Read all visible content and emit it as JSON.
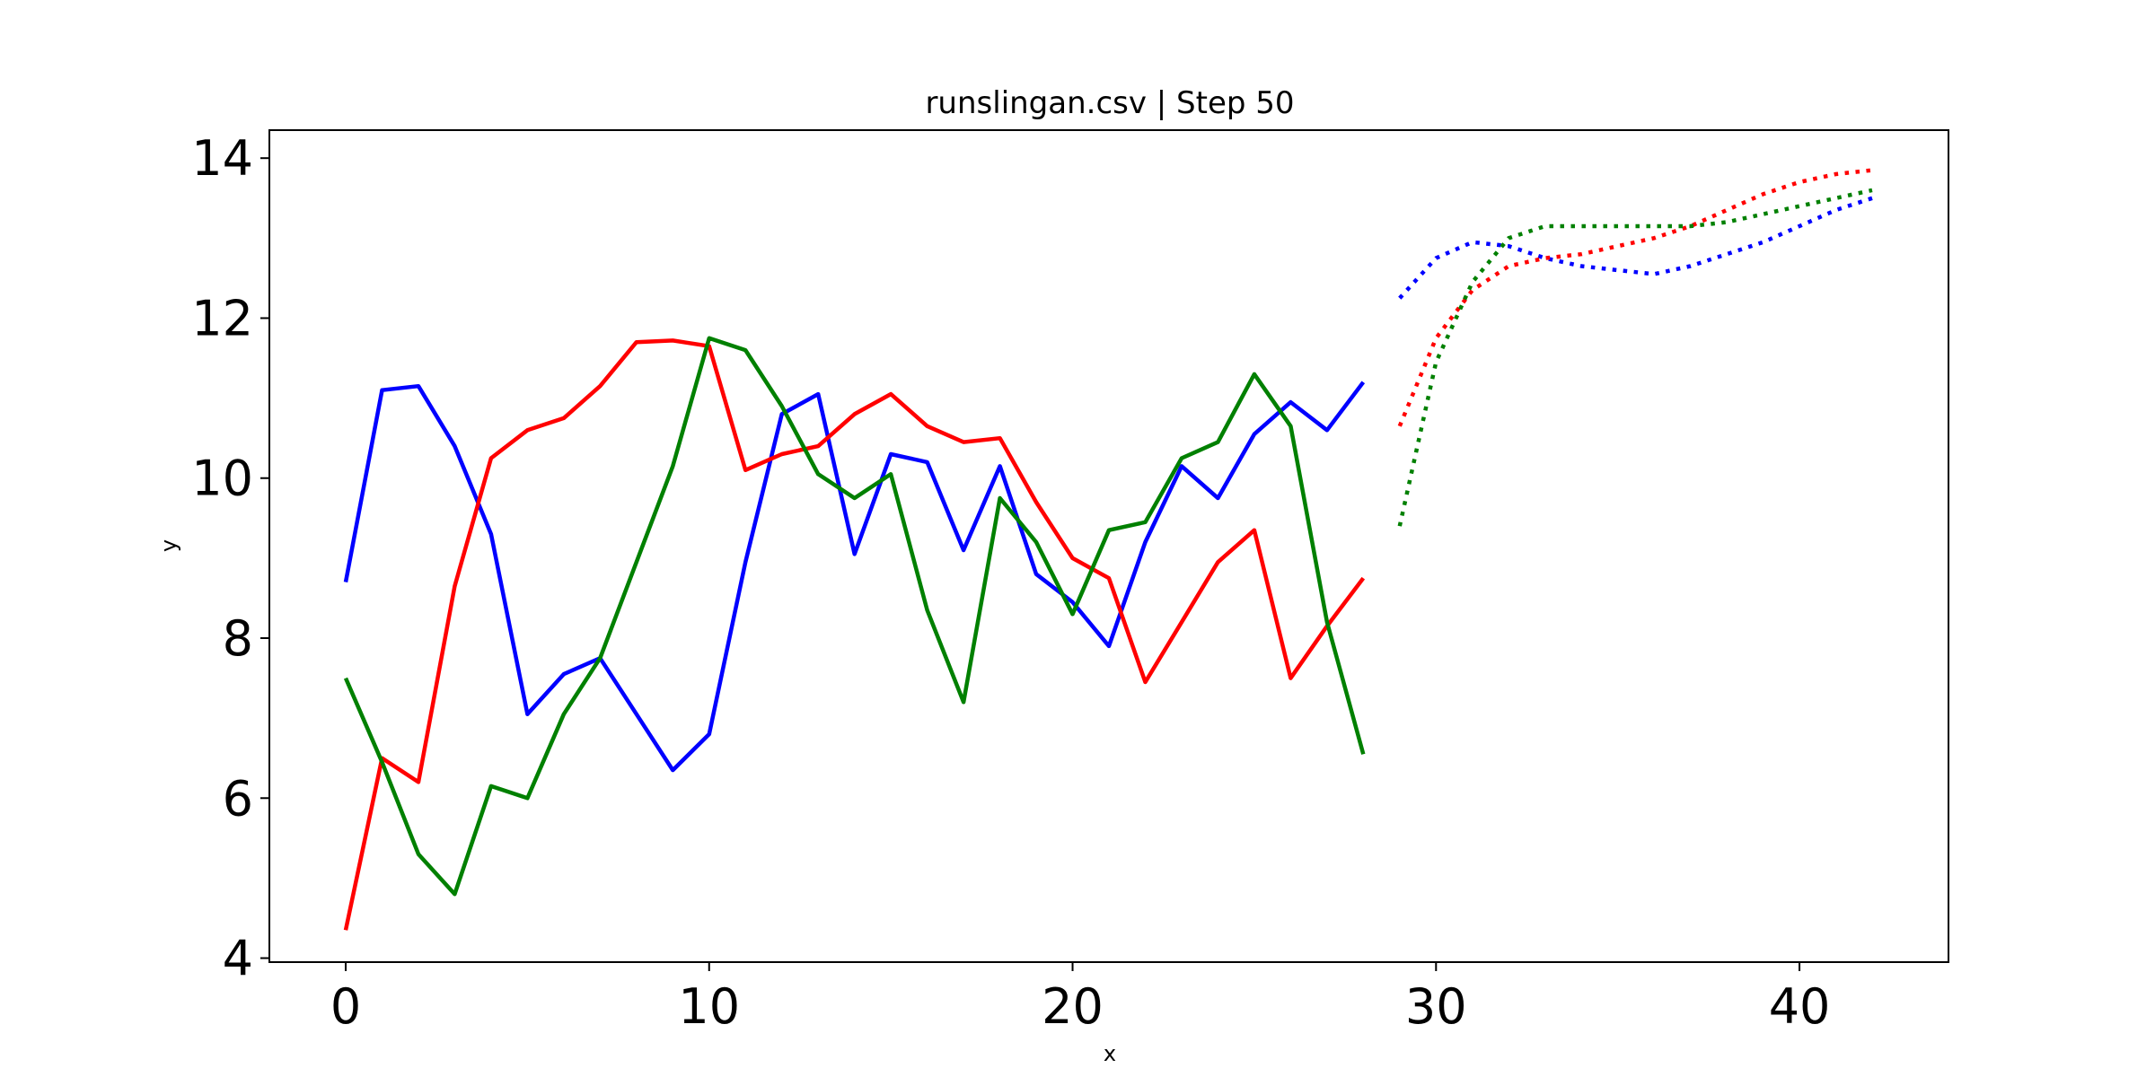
{
  "chart_data": {
    "type": "line",
    "title": "runslingan.csv | Step 50",
    "xlabel": "x",
    "ylabel": "y",
    "xlim": [
      -2.1,
      44.1
    ],
    "ylim": [
      3.95,
      14.35
    ],
    "xticks": [
      0,
      10,
      20,
      30,
      40
    ],
    "yticks": [
      4,
      6,
      8,
      10,
      12,
      14
    ],
    "x_tick_labels": [
      "0",
      "10",
      "20",
      "30",
      "40"
    ],
    "y_tick_labels": [
      "4",
      "6",
      "8",
      "10",
      "12",
      "14"
    ],
    "grid": false,
    "legend": "none",
    "series": [
      {
        "color": "#0000ff",
        "style": "solid",
        "x": [
          0,
          1,
          2,
          3,
          4,
          5,
          6,
          7,
          8,
          9,
          10,
          11,
          12,
          13,
          14,
          15,
          16,
          17,
          18,
          19,
          20,
          21,
          22,
          23,
          24,
          25,
          26,
          27,
          28
        ],
        "values": [
          8.7,
          11.1,
          11.15,
          10.4,
          9.3,
          7.05,
          7.55,
          7.75,
          7.05,
          6.35,
          6.8,
          8.95,
          10.8,
          11.05,
          9.05,
          10.3,
          10.2,
          9.1,
          10.15,
          8.8,
          8.45,
          7.9,
          9.2,
          10.15,
          9.75,
          10.55,
          10.95,
          10.6,
          11.2
        ]
      },
      {
        "color": "#ff0000",
        "style": "solid",
        "x": [
          0,
          1,
          2,
          3,
          4,
          5,
          6,
          7,
          8,
          9,
          10,
          11,
          12,
          13,
          14,
          15,
          16,
          17,
          18,
          19,
          20,
          21,
          22,
          23,
          24,
          25,
          26,
          27,
          28
        ],
        "values": [
          4.35,
          6.5,
          6.2,
          8.65,
          10.25,
          10.6,
          10.75,
          11.15,
          11.7,
          11.72,
          11.65,
          10.1,
          10.3,
          10.4,
          10.8,
          11.05,
          10.65,
          10.45,
          10.5,
          9.7,
          9.0,
          8.75,
          7.45,
          8.2,
          8.95,
          9.35,
          7.5,
          8.15,
          8.75
        ]
      },
      {
        "color": "#008000",
        "style": "solid",
        "x": [
          0,
          1,
          2,
          3,
          4,
          5,
          6,
          7,
          8,
          9,
          10,
          11,
          12,
          13,
          14,
          15,
          16,
          17,
          18,
          19,
          20,
          21,
          22,
          23,
          24,
          25,
          26,
          27,
          28
        ],
        "values": [
          7.5,
          6.45,
          5.3,
          4.8,
          6.15,
          6.0,
          7.05,
          7.75,
          8.95,
          10.15,
          11.75,
          11.6,
          10.9,
          10.05,
          9.75,
          10.05,
          8.35,
          7.2,
          9.75,
          9.2,
          8.3,
          9.35,
          9.45,
          10.25,
          10.45,
          11.3,
          10.65,
          8.2,
          6.55
        ]
      },
      {
        "color": "#0000ff",
        "style": "dotted",
        "x": [
          29,
          30,
          31,
          32,
          33,
          34,
          35,
          36,
          37,
          38,
          39,
          40,
          41,
          42
        ],
        "values": [
          12.25,
          12.75,
          12.95,
          12.9,
          12.75,
          12.65,
          12.6,
          12.55,
          12.65,
          12.8,
          12.95,
          13.15,
          13.35,
          13.5
        ]
      },
      {
        "color": "#ff0000",
        "style": "dotted",
        "x": [
          29,
          30,
          31,
          32,
          33,
          34,
          35,
          36,
          37,
          38,
          39,
          40,
          41,
          42
        ],
        "values": [
          10.65,
          11.75,
          12.35,
          12.65,
          12.75,
          12.8,
          12.9,
          13.0,
          13.15,
          13.35,
          13.55,
          13.7,
          13.8,
          13.85
        ]
      },
      {
        "color": "#008000",
        "style": "dotted",
        "x": [
          29,
          30,
          31,
          32,
          33,
          34,
          35,
          36,
          37,
          38,
          39,
          40,
          41,
          42
        ],
        "values": [
          9.4,
          11.45,
          12.45,
          13.0,
          13.15,
          13.15,
          13.15,
          13.15,
          13.15,
          13.2,
          13.3,
          13.4,
          13.5,
          13.6
        ]
      }
    ]
  }
}
